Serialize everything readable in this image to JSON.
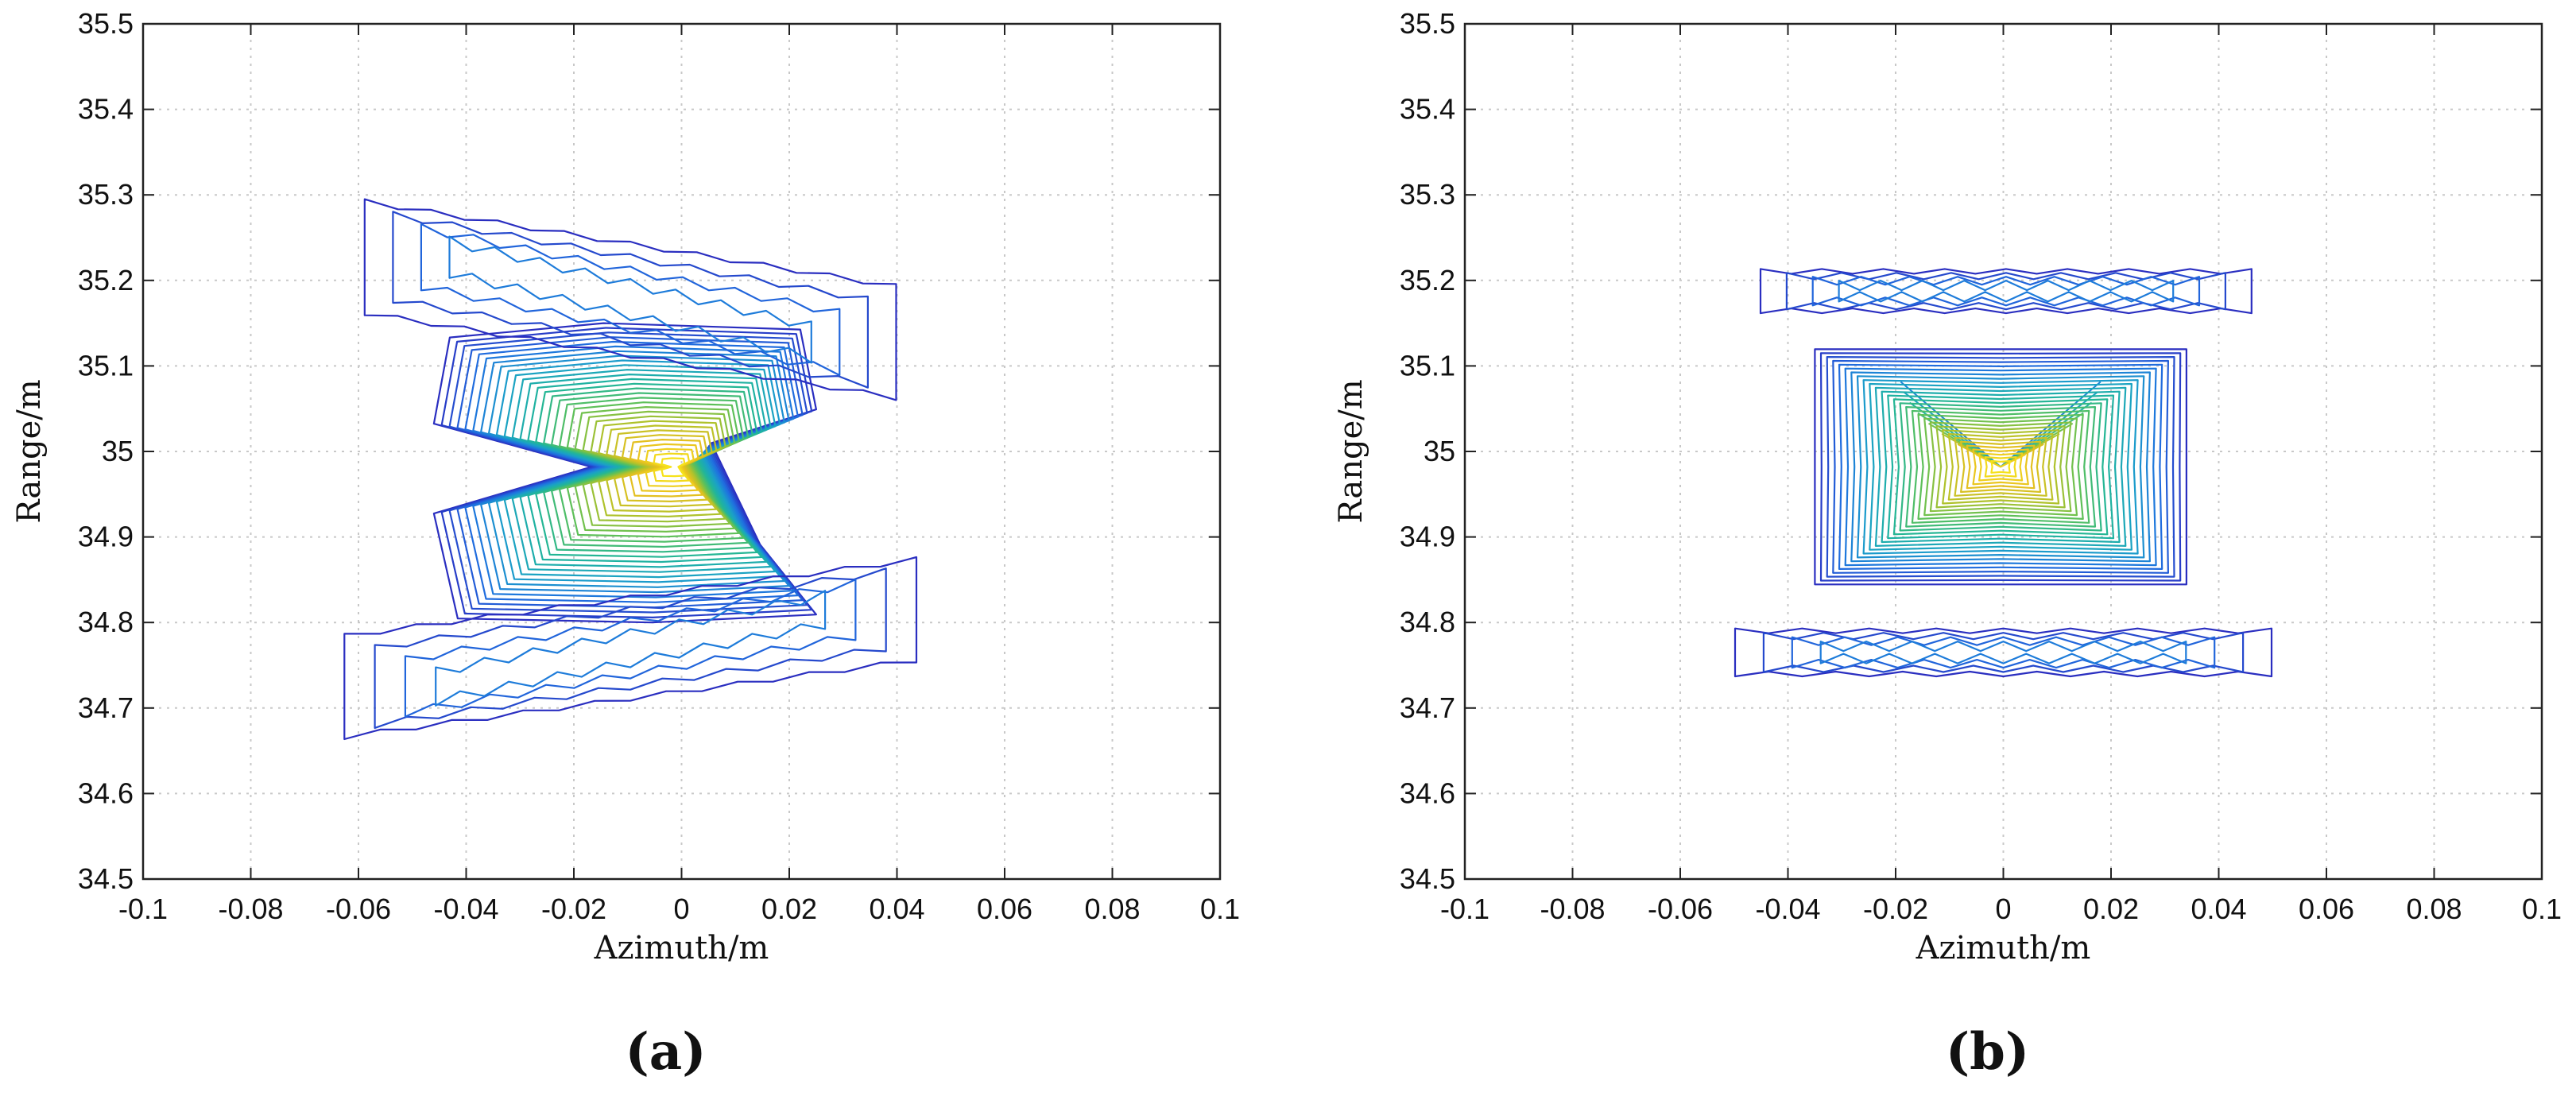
{
  "chart_data": [
    {
      "type": "contour",
      "panel_label": "(a)",
      "xlabel": "Azimuth/m",
      "ylabel": "Range/m",
      "xlim": [
        -0.1,
        0.1
      ],
      "ylim": [
        34.5,
        35.5
      ],
      "xticks": [
        -0.1,
        -0.08,
        -0.06,
        -0.04,
        -0.02,
        0,
        0.02,
        0.04,
        0.06,
        0.08,
        0.1
      ],
      "xtick_labels": [
        "-0.1",
        "-0.08",
        "-0.06",
        "-0.04",
        "-0.02",
        "0",
        "0.02",
        "0.04",
        "0.06",
        "0.08",
        "0.1"
      ],
      "yticks": [
        34.5,
        34.6,
        34.7,
        34.8,
        34.9,
        35,
        35.1,
        35.2,
        35.3,
        35.4,
        35.5
      ],
      "ytick_labels": [
        "34.5",
        "34.6",
        "34.7",
        "34.8",
        "34.9",
        "35",
        "35.1",
        "35.2",
        "35.3",
        "35.4",
        "35.5"
      ],
      "grid": true,
      "colormap": [
        "#2a2ec0",
        "#1f6fe0",
        "#1aa0c8",
        "#21b59a",
        "#5cc05a",
        "#b2c22a",
        "#e8c020",
        "#f8e81a"
      ],
      "peak": {
        "x": -0.001,
        "y": 34.982
      },
      "main_lobe": {
        "x_range": [
          -0.046,
          0.025
        ],
        "y_range": [
          34.8,
          35.15
        ],
        "skew": -0.9
      },
      "sidelobes": [
        {
          "x_range": [
            -0.062,
            0.043
          ],
          "y_top": 35.255,
          "y_bottom": 35.1,
          "tilt": -0.8
        },
        {
          "x_range": [
            -0.066,
            0.047
          ],
          "y_top": 34.84,
          "y_bottom": 34.7,
          "tilt": 0.8
        }
      ]
    },
    {
      "type": "contour",
      "panel_label": "(b)",
      "xlabel": "Azimuth/m",
      "ylabel": "Range/m",
      "xlim": [
        -0.1,
        0.1
      ],
      "ylim": [
        34.5,
        35.5
      ],
      "xticks": [
        -0.1,
        -0.08,
        -0.06,
        -0.04,
        -0.02,
        0,
        0.02,
        0.04,
        0.06,
        0.08,
        0.1
      ],
      "xtick_labels": [
        "-0.1",
        "-0.08",
        "-0.06",
        "-0.04",
        "-0.02",
        "0",
        "0.02",
        "0.04",
        "0.06",
        "0.08",
        "0.1"
      ],
      "yticks": [
        34.5,
        34.6,
        34.7,
        34.8,
        34.9,
        35,
        35.1,
        35.2,
        35.3,
        35.4,
        35.5
      ],
      "ytick_labels": [
        "34.5",
        "34.6",
        "34.7",
        "34.8",
        "34.9",
        "35",
        "35.1",
        "35.2",
        "35.3",
        "35.4",
        "35.5"
      ],
      "grid": true,
      "colormap": [
        "#2a2ec0",
        "#1f6fe0",
        "#1aa0c8",
        "#21b59a",
        "#5cc05a",
        "#b2c22a",
        "#e8c020",
        "#f8e81a"
      ],
      "peak": {
        "x": 0.0,
        "y": 34.982
      },
      "main_lobe": {
        "x_range": [
          -0.035,
          0.034
        ],
        "y_range": [
          34.84,
          35.115
        ],
        "skew": 0
      },
      "sidelobes": [
        {
          "x_range": [
            -0.048,
            0.049
          ],
          "y_top": 35.215,
          "y_bottom": 35.16,
          "tilt": 0
        },
        {
          "x_range": [
            -0.053,
            0.053
          ],
          "y_top": 34.795,
          "y_bottom": 34.735,
          "tilt": 0
        }
      ]
    }
  ]
}
